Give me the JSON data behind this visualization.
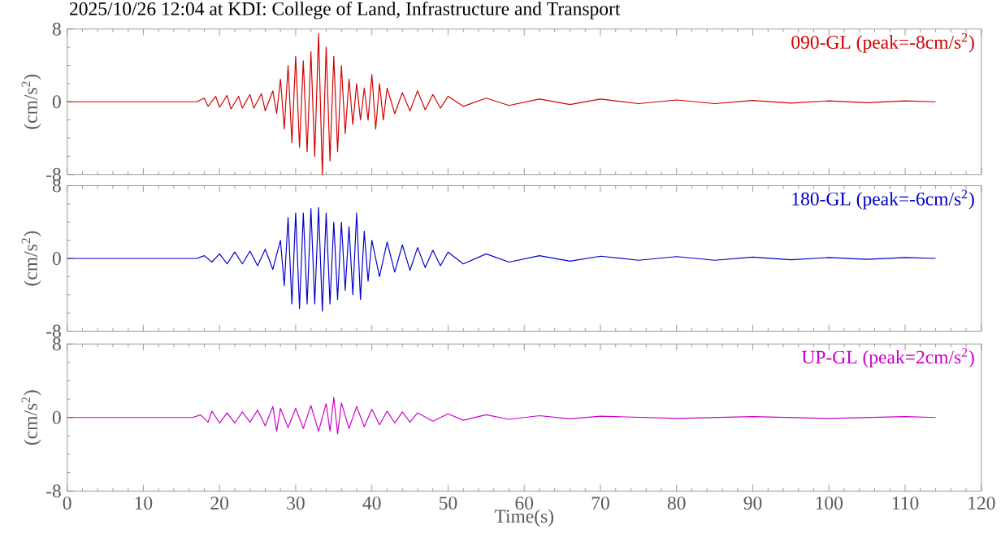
{
  "chart_data": [
    {
      "type": "line",
      "title": "2025/10/26 12:04 at KDI: College of Land, Infrastructure and Transport",
      "ylabel": "(cm/s$^{2}$)",
      "xlim": [
        0,
        120
      ],
      "xticks": [
        0,
        10,
        20,
        30,
        40,
        50,
        60,
        70,
        80,
        90,
        100,
        110,
        120
      ],
      "ylim": [
        -8,
        8
      ],
      "yticks": [
        -8,
        0,
        8
      ],
      "tick_labels": "y",
      "grid": false,
      "series": [
        {
          "name": "090-GL (peak=-8cm/s$^{2}$)",
          "color": "#d40000",
          "x": [
            0,
            17,
            18,
            18.5,
            19.5,
            20,
            21,
            21.5,
            22.5,
            23,
            24,
            24.5,
            25.5,
            26,
            27,
            27.5,
            28,
            28.5,
            29,
            29.5,
            30,
            30.5,
            31,
            31.5,
            32,
            32.5,
            33,
            33.5,
            34,
            34.5,
            35,
            35.5,
            36,
            36.5,
            37,
            37.5,
            38,
            38.5,
            39,
            39.5,
            40,
            40.5,
            41,
            41.5,
            42,
            43,
            44,
            45,
            46,
            47,
            48,
            49,
            50,
            52,
            55,
            58,
            62,
            66,
            70,
            75,
            80,
            85,
            90,
            95,
            100,
            105,
            110,
            114
          ],
          "values": [
            0,
            0,
            0.4,
            -0.5,
            0.6,
            -0.6,
            0.7,
            -0.8,
            0.6,
            -0.7,
            0.8,
            -0.7,
            0.9,
            -1,
            1.2,
            -1.3,
            2.5,
            -3,
            4,
            -4.5,
            5,
            -5,
            4.5,
            -5.5,
            5.5,
            -6,
            7.5,
            -8,
            6,
            -6.5,
            5,
            -5.5,
            4,
            -3.5,
            2.5,
            -2.5,
            2,
            -2,
            1.5,
            -2,
            3,
            -3,
            2,
            -2,
            1.5,
            -1.3,
            1,
            -1,
            1.2,
            -0.9,
            0.8,
            -0.7,
            0.6,
            -0.5,
            0.4,
            -0.4,
            0.3,
            -0.3,
            0.3,
            -0.2,
            0.2,
            -0.2,
            0.15,
            -0.15,
            0.1,
            -0.1,
            0.1,
            0
          ]
        }
      ]
    },
    {
      "type": "line",
      "ylabel": "(cm/s$^{2}$)",
      "xlim": [
        0,
        120
      ],
      "xticks": [
        0,
        10,
        20,
        30,
        40,
        50,
        60,
        70,
        80,
        90,
        100,
        110,
        120
      ],
      "ylim": [
        -8,
        8
      ],
      "yticks": [
        -8,
        0,
        8
      ],
      "tick_labels": "y",
      "grid": false,
      "series": [
        {
          "name": "180-GL (peak=-6cm/s$^{2}$)",
          "color": "#0000cc",
          "x": [
            0,
            17,
            18,
            19,
            20,
            21,
            22,
            23,
            24,
            25,
            26,
            27,
            28,
            28.5,
            29,
            29.5,
            30,
            30.5,
            31,
            31.5,
            32,
            32.5,
            33,
            33.5,
            34,
            34.5,
            35,
            35.5,
            36,
            36.5,
            37,
            37.5,
            38,
            38.5,
            39,
            39.5,
            40,
            41,
            42,
            43,
            44,
            45,
            46,
            47,
            48,
            49,
            50,
            52,
            55,
            58,
            62,
            66,
            70,
            75,
            80,
            85,
            90,
            95,
            100,
            105,
            110,
            114
          ],
          "values": [
            0,
            0,
            0.3,
            -0.4,
            0.5,
            -0.6,
            0.7,
            -0.6,
            0.8,
            -0.8,
            1,
            -1.2,
            2,
            -3,
            4.5,
            -5,
            5,
            -5.5,
            5,
            -5,
            5.5,
            -5,
            5.6,
            -5.8,
            5,
            -5,
            4,
            -4.5,
            4,
            -3.5,
            3.5,
            -4,
            5,
            -4.5,
            3,
            -2.5,
            2,
            -2,
            1.8,
            -1.5,
            1.5,
            -1.3,
            1.2,
            -1,
            0.9,
            -0.8,
            0.7,
            -0.6,
            0.5,
            -0.4,
            0.3,
            -0.3,
            0.25,
            -0.2,
            0.2,
            -0.2,
            0.15,
            -0.15,
            0.1,
            -0.1,
            0.1,
            0
          ]
        }
      ]
    },
    {
      "type": "line",
      "ylabel": "(cm/s$^{2}$)",
      "xlabel": "Time(s)",
      "xlim": [
        0,
        120
      ],
      "xticks": [
        0,
        10,
        20,
        30,
        40,
        50,
        60,
        70,
        80,
        90,
        100,
        110,
        120
      ],
      "ylim": [
        -8,
        8
      ],
      "yticks": [
        -8,
        0,
        8
      ],
      "grid": false,
      "series": [
        {
          "name": "UP-GL (peak=2cm/s$^{2}$)",
          "color": "#cc00cc",
          "x": [
            0,
            16.5,
            17.5,
            18.5,
            19,
            20,
            21,
            22,
            23,
            24,
            25,
            26,
            27,
            27.5,
            28,
            29,
            30,
            31,
            32,
            33,
            34,
            34.5,
            35,
            35.5,
            36,
            37,
            38,
            39,
            40,
            41,
            42,
            43,
            44,
            45,
            46,
            48,
            50,
            52,
            55,
            58,
            62,
            66,
            70,
            80,
            90,
            100,
            110,
            114
          ],
          "values": [
            0,
            0,
            0.3,
            -0.5,
            0.7,
            -0.6,
            0.5,
            -0.6,
            0.6,
            -0.5,
            0.8,
            -0.9,
            1.2,
            -1.5,
            1,
            -1.1,
            1,
            -1.2,
            1.3,
            -1.5,
            1.5,
            -1.5,
            2.2,
            -1.8,
            1.6,
            -1.2,
            1.2,
            -1,
            0.9,
            -0.8,
            0.7,
            -0.6,
            0.6,
            -0.5,
            0.5,
            -0.4,
            0.4,
            -0.3,
            0.3,
            -0.2,
            0.2,
            -0.15,
            0.15,
            -0.1,
            0.1,
            -0.1,
            0.1,
            0
          ]
        }
      ]
    }
  ]
}
